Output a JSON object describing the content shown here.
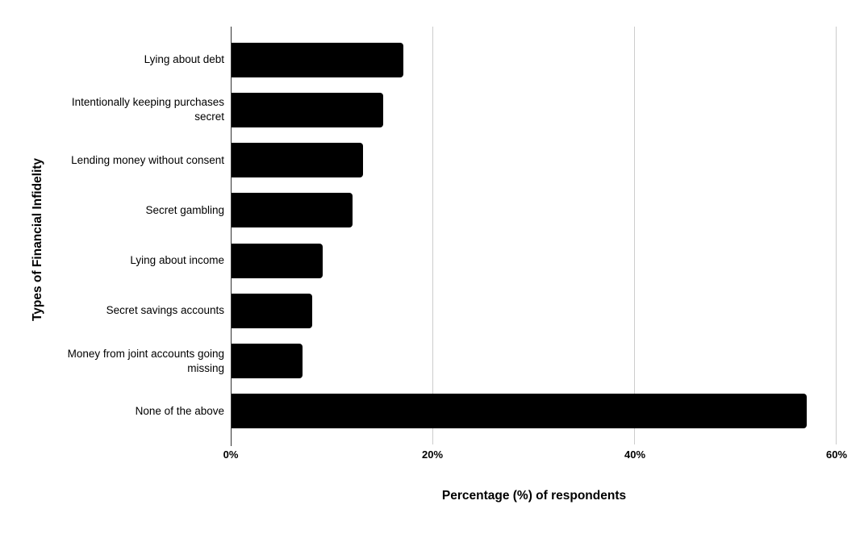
{
  "chart_data": {
    "type": "bar",
    "orientation": "horizontal",
    "title": "",
    "xlabel": "Percentage (%) of respondents",
    "ylabel": "Types of Financial Infidelity",
    "categories": [
      "Lying about debt",
      "Intentionally keeping purchases secret",
      "Lending money without consent",
      "Secret gambling",
      "Lying about income",
      "Secret savings accounts",
      "Money from joint accounts going missing",
      "None of the above"
    ],
    "values": [
      17,
      15,
      13,
      12,
      9,
      8,
      7,
      57
    ],
    "unit": "%",
    "xlim": [
      0,
      62
    ],
    "x_tick_values": [
      0,
      20,
      40,
      60
    ],
    "x_tick_labels": [
      "0%",
      "20%",
      "40%",
      "60%"
    ],
    "grid": "vertical-gridlines-on",
    "legend": "none",
    "bar_color": "#000000",
    "gridline_color": "#cccccc",
    "axis_line_color": "#333333",
    "background_color": "#ffffff"
  }
}
